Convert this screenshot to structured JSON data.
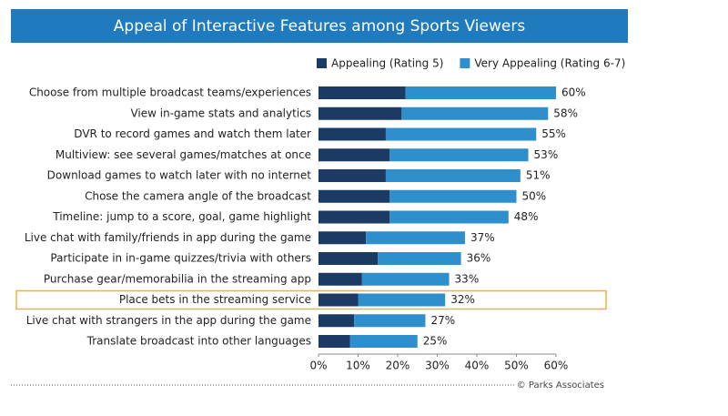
{
  "chart_data": {
    "type": "stacked-barh",
    "title": "Appeal of Interactive Features among Sports Viewers",
    "source": "© Parks Associates",
    "categories": [
      "Choose from multiple broadcast teams/experiences",
      "View in-game stats and analytics",
      "DVR to record games and watch them later",
      "Multiview: see several games/matches at once",
      "Download games to watch later with no internet",
      "Chose the camera angle of the broadcast",
      "Timeline: jump to a score, goal, game highlight",
      "Live chat with family/friends in app during the game",
      "Participate in in-game quizzes/trivia with others",
      "Purchase gear/memorabilia in the streaming app",
      "Place bets in the streaming service",
      "Live chat with strangers in the app during the game",
      "Translate broadcast into other languages"
    ],
    "series": [
      {
        "name": "Appealing (Rating 5)",
        "color": "#1b3a64",
        "values": [
          22,
          21,
          17,
          18,
          17,
          18,
          18,
          12,
          15,
          11,
          10,
          9,
          8
        ]
      },
      {
        "name": "Very Appealing (Rating 6-7)",
        "color": "#2e8fcc",
        "values": [
          38,
          37,
          38,
          35,
          34,
          32,
          30,
          25,
          21,
          22,
          22,
          18,
          17
        ]
      }
    ],
    "total_labels": [
      "60%",
      "58%",
      "55%",
      "53%",
      "51%",
      "50%",
      "48%",
      "37%",
      "36%",
      "33%",
      "32%",
      "27%",
      "25%"
    ],
    "xlim": [
      0,
      60
    ],
    "xticks": [
      {
        "value": 0,
        "label": "0%"
      },
      {
        "value": 10,
        "label": "10%"
      },
      {
        "value": 20,
        "label": "20%"
      },
      {
        "value": 30,
        "label": "30%"
      },
      {
        "value": 40,
        "label": "40%"
      },
      {
        "value": 50,
        "label": "50%"
      },
      {
        "value": 60,
        "label": "60%"
      }
    ],
    "highlight": 10,
    "highlight_color": "#f2b134",
    "legend": "top-right"
  }
}
